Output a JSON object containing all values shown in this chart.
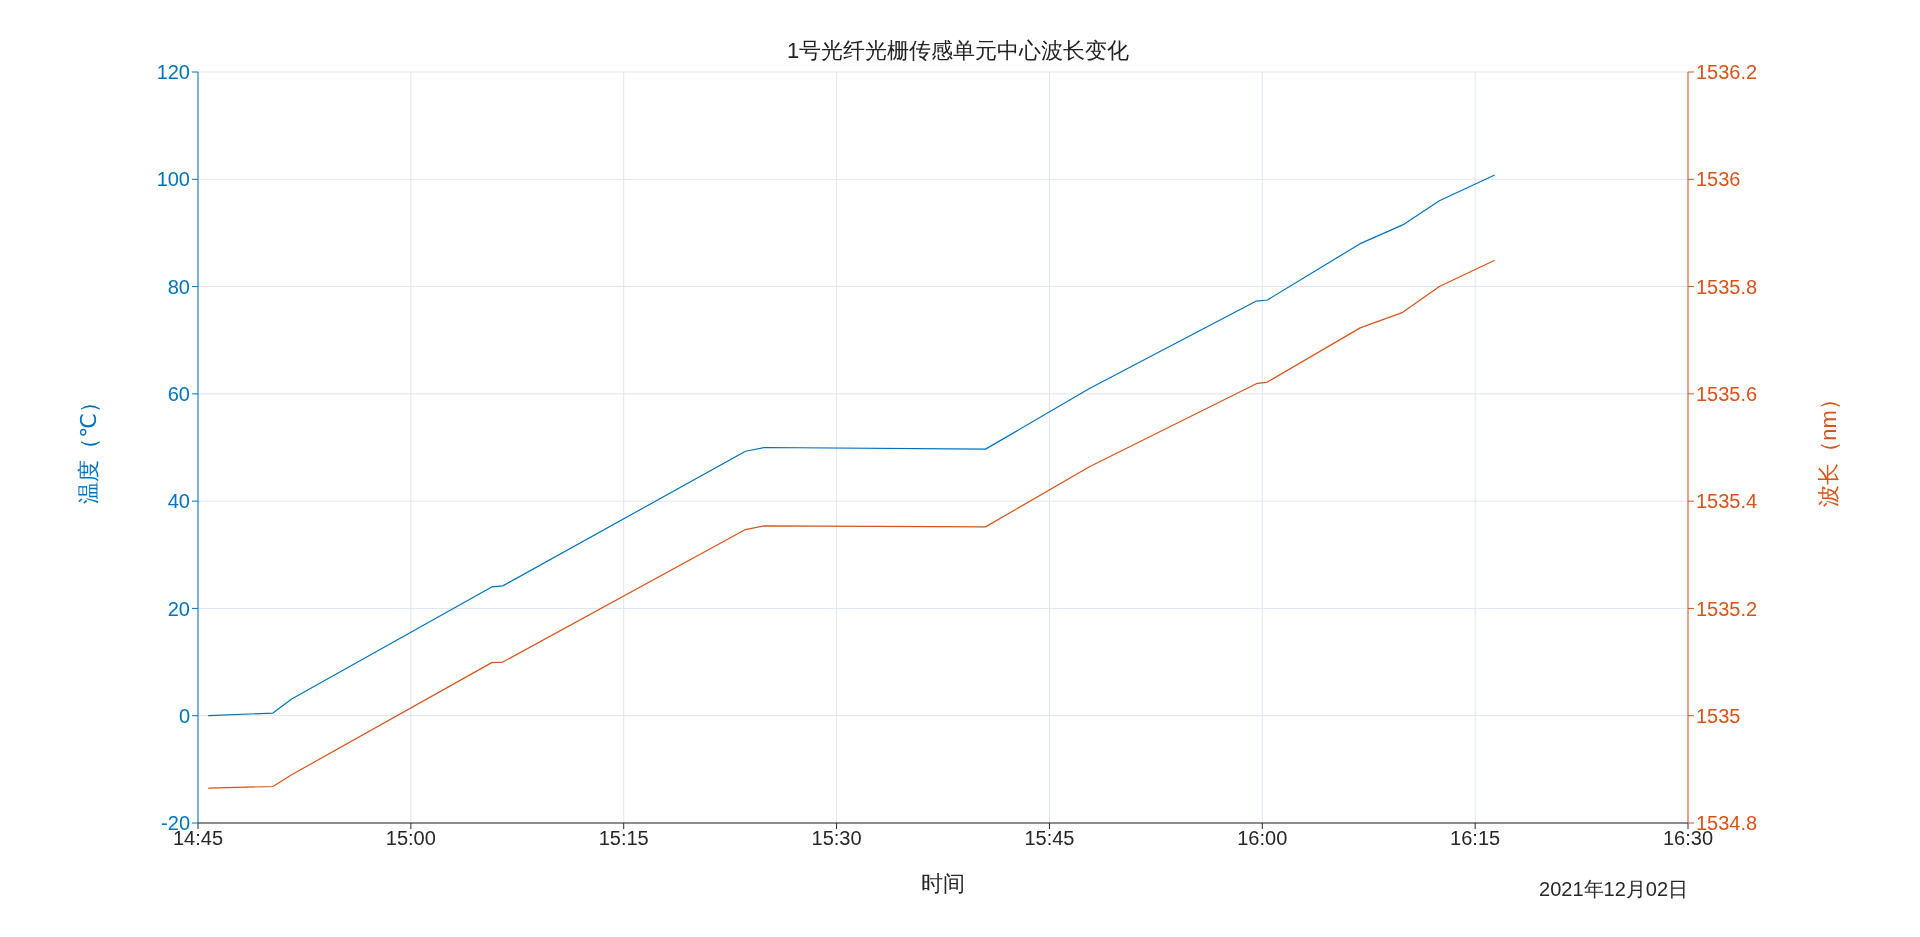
{
  "chart_data": {
    "type": "line",
    "title": "1号光纤光栅传感单元中心波长变化",
    "xlabel": "时间",
    "ylabel": "温度（℃）",
    "y2label": "波长（nm）",
    "annotations": [
      "2021年12月02日"
    ],
    "xlim": [
      14.75,
      16.5
    ],
    "xticks": [
      {
        "value": 14.75,
        "label": "14:45"
      },
      {
        "value": 15,
        "label": "15:00"
      },
      {
        "value": 15.25,
        "label": "15:15"
      },
      {
        "value": 15.5,
        "label": "15:30"
      },
      {
        "value": 15.75,
        "label": "15:45"
      },
      {
        "value": 16,
        "label": "16:00"
      },
      {
        "value": 16.25,
        "label": "16:15"
      },
      {
        "value": 16.5,
        "label": "16:30"
      }
    ],
    "ylim": [
      -20,
      120
    ],
    "yticks": [
      -20,
      0,
      20,
      40,
      60,
      80,
      100,
      120
    ],
    "y2lim": [
      1534.8,
      1536.2
    ],
    "y2ticks": [
      1534.8,
      1535,
      1535.2,
      1535.4,
      1535.6,
      1535.8,
      1536,
      1536.2
    ],
    "grid": true,
    "legend": false,
    "marker": "none",
    "line_style": "solid",
    "series": [
      {
        "color": "#0072bd",
        "x": [
          14.762,
          14.838,
          14.86,
          15.095,
          15.108,
          15.393,
          15.415,
          15.675,
          15.797,
          15.993,
          16.006,
          16.115,
          16.165,
          16.208,
          16.273
        ],
        "values": [
          0,
          0.5,
          3.1,
          24,
          24.2,
          49.3,
          50,
          49.7,
          61,
          77.3,
          77.5,
          88,
          91.5,
          96,
          100.8
        ]
      },
      {
        "color": "#d95319",
        "axis": "y2",
        "x": [
          14.762,
          14.838,
          14.86,
          15.095,
          15.108,
          15.393,
          15.415,
          15.675,
          15.797,
          15.993,
          16.006,
          16.115,
          16.165,
          16.208,
          16.273
        ],
        "values": [
          1534.865,
          1534.868,
          1534.89,
          1535.099,
          1535.1,
          1535.347,
          1535.354,
          1535.352,
          1535.464,
          1535.619,
          1535.622,
          1535.723,
          1535.752,
          1535.8,
          1535.849
        ]
      }
    ]
  }
}
